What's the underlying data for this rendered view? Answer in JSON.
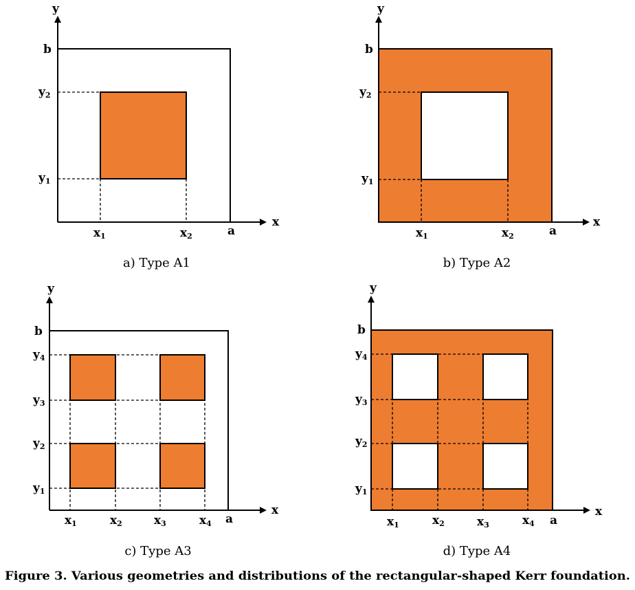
{
  "colors": {
    "fill": "#ED7D31",
    "line": "#000000",
    "background": "#FFFFFF"
  },
  "axis_labels": {
    "x": "x",
    "y": "y",
    "a": "a",
    "b": "b"
  },
  "tick_labels": {
    "x1": "x1",
    "x2": "x2",
    "x3": "x3",
    "x4": "x4",
    "y1": "y1",
    "y2": "y2",
    "y3": "y3",
    "y4": "y4"
  },
  "panels": {
    "a": {
      "caption": "a) Type A1"
    },
    "b": {
      "caption": "b) Type A2"
    },
    "c": {
      "caption": "c) Type A3"
    },
    "d": {
      "caption": "d) Type A4"
    }
  },
  "figure_caption": "Figure 3. Various geometries and distributions of the rectangular-shaped Kerr foundation."
}
